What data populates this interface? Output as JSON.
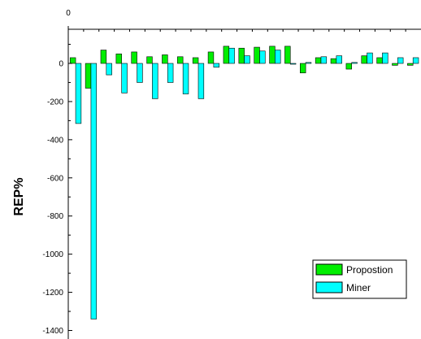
{
  "chart_data": {
    "type": "bar",
    "title": "",
    "xlabel": "",
    "ylabel": "REP%",
    "ylim": [
      -1400,
      150
    ],
    "yticks": [
      0,
      -200,
      -400,
      -600,
      -800,
      -1000,
      -1200,
      -1400
    ],
    "top_axis_label": "0",
    "grid": false,
    "legend_position": "bottom-right",
    "series": [
      {
        "name": "Propostion",
        "color": "#00ee00",
        "values": [
          30,
          -130,
          70,
          50,
          60,
          35,
          45,
          35,
          30,
          60,
          90,
          80,
          85,
          90,
          90,
          -50,
          30,
          25,
          -30,
          40,
          30,
          -10,
          -10
        ]
      },
      {
        "name": "Miner",
        "color": "#00ffff",
        "values": [
          -315,
          -1340,
          -60,
          -155,
          -100,
          -185,
          -100,
          -160,
          -185,
          -20,
          80,
          40,
          65,
          70,
          0,
          5,
          35,
          40,
          5,
          55,
          55,
          30,
          30
        ]
      }
    ]
  }
}
